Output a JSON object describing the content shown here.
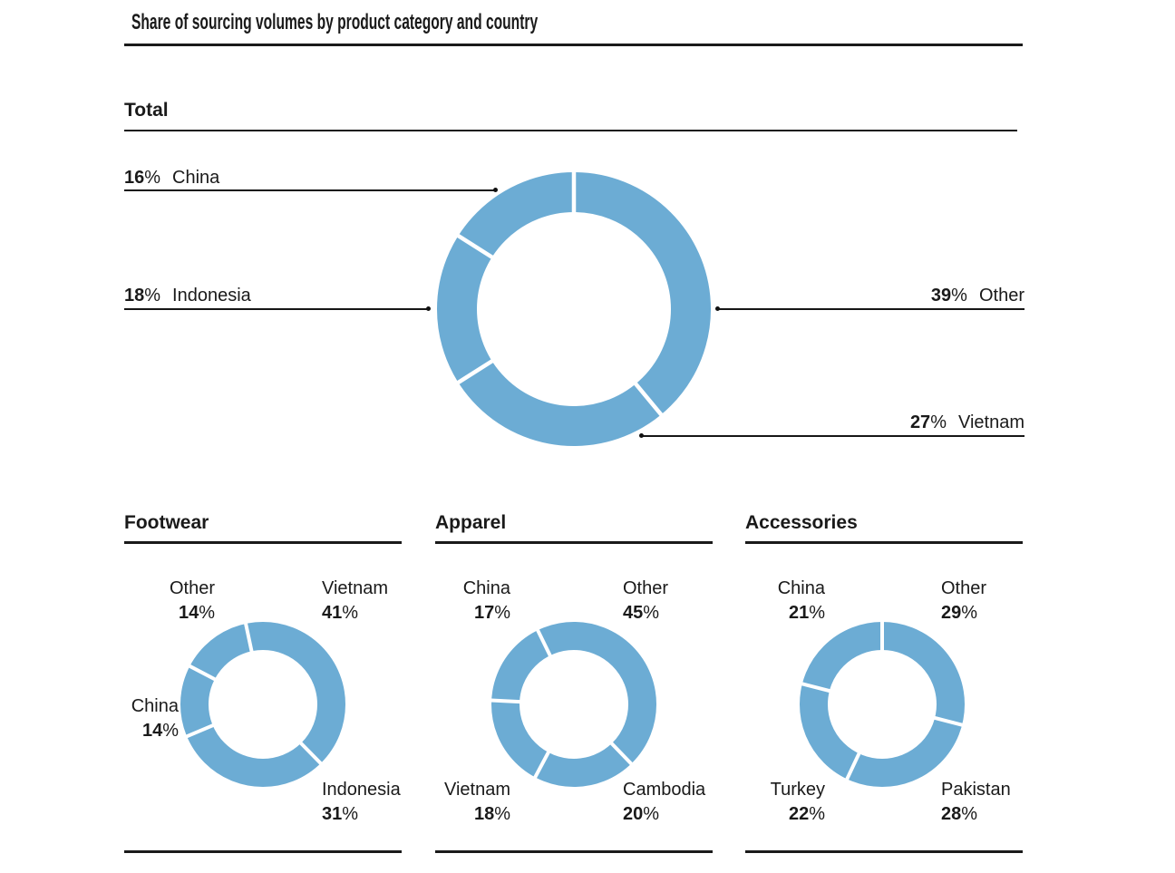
{
  "title": "Share of sourcing volumes by product category and country",
  "strings": {
    "pct": "%"
  },
  "palette": {
    "donut_blue": "#6CACD4",
    "text": "#1a1a1a",
    "rule": "#1a1a1a"
  },
  "chart_data": [
    {
      "type": "pie",
      "subtype": "donut",
      "title": "Total",
      "color": "#6CACD4",
      "start_angle_deg": 0,
      "legend_position": "callout-lines",
      "segments": [
        {
          "label": "Other",
          "value": 39,
          "display": "39%"
        },
        {
          "label": "Vietnam",
          "value": 27,
          "display": "27%"
        },
        {
          "label": "Indonesia",
          "value": 18,
          "display": "18%"
        },
        {
          "label": "China",
          "value": 16,
          "display": "16%"
        }
      ]
    },
    {
      "type": "pie",
      "subtype": "donut",
      "title": "Footwear",
      "color": "#6CACD4",
      "start_angle_deg": -12,
      "legend_position": "corner-labels",
      "segments": [
        {
          "label": "Vietnam",
          "value": 41,
          "display": "41%"
        },
        {
          "label": "Indonesia",
          "value": 31,
          "display": "31%"
        },
        {
          "label": "China",
          "value": 14,
          "display": "14%"
        },
        {
          "label": "Other",
          "value": 14,
          "display": "14%"
        }
      ]
    },
    {
      "type": "pie",
      "subtype": "donut",
      "title": "Apparel",
      "color": "#6CACD4",
      "start_angle_deg": -26,
      "legend_position": "corner-labels",
      "segments": [
        {
          "label": "Other",
          "value": 45,
          "display": "45%"
        },
        {
          "label": "Cambodia",
          "value": 20,
          "display": "20%"
        },
        {
          "label": "Vietnam",
          "value": 18,
          "display": "18%"
        },
        {
          "label": "China",
          "value": 17,
          "display": "17%"
        }
      ]
    },
    {
      "type": "pie",
      "subtype": "donut",
      "title": "Accessories",
      "color": "#6CACD4",
      "start_angle_deg": 0,
      "legend_position": "corner-labels",
      "segments": [
        {
          "label": "Other",
          "value": 29,
          "display": "29%"
        },
        {
          "label": "Pakistan",
          "value": 28,
          "display": "28%"
        },
        {
          "label": "Turkey",
          "value": 22,
          "display": "22%"
        },
        {
          "label": "China",
          "value": 21,
          "display": "21%"
        }
      ]
    }
  ]
}
